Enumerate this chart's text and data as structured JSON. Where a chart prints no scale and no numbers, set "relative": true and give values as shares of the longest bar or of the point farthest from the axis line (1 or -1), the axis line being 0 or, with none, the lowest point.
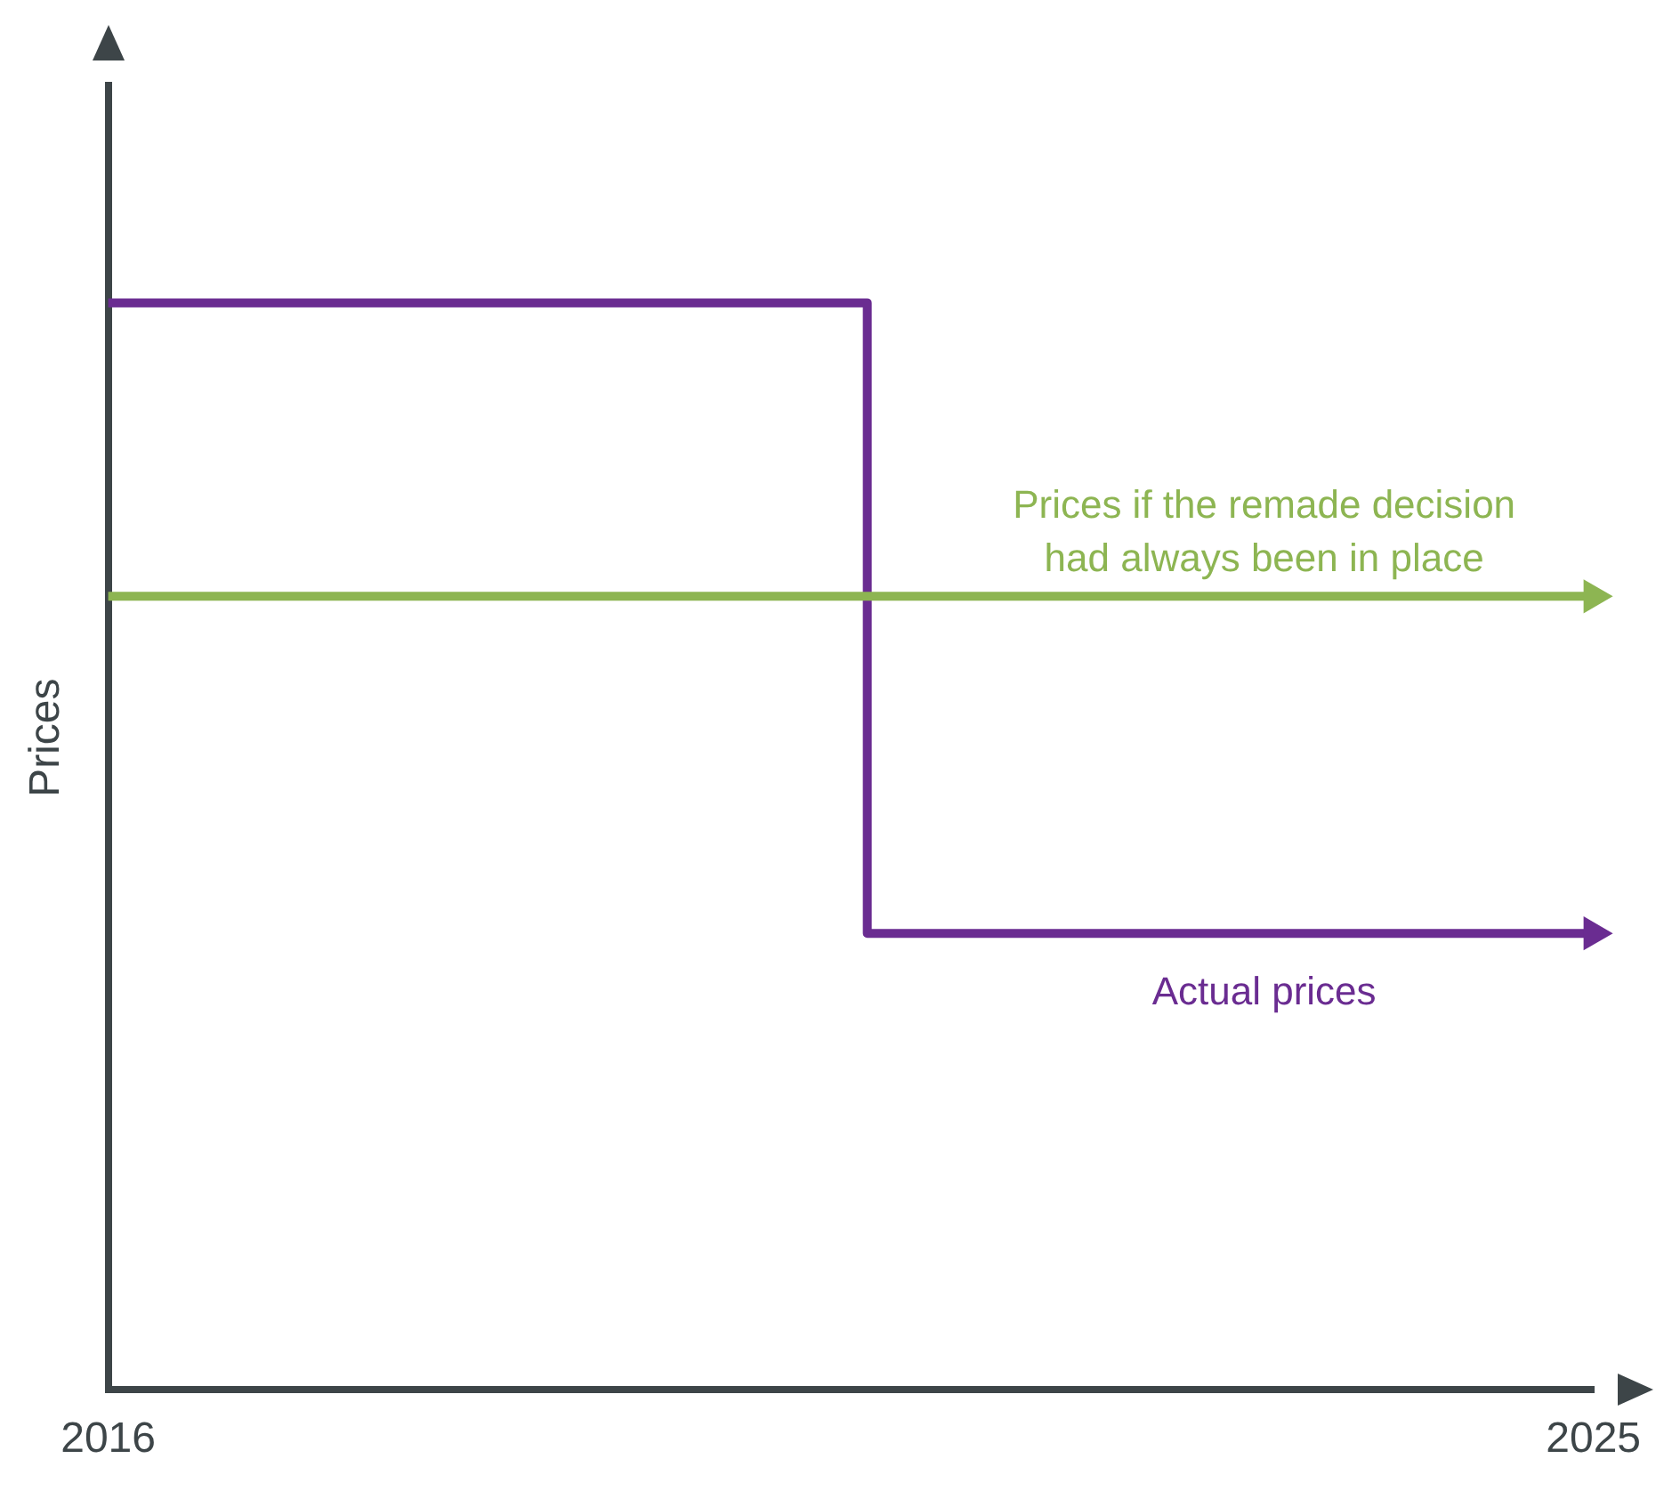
{
  "chart_data": {
    "type": "step",
    "ylabel": "Prices",
    "relative": true,
    "xlim": [
      2016,
      2025
    ],
    "xticks": [
      2016,
      2025
    ],
    "grid": false,
    "legend": false,
    "line_style": "solid",
    "series": [
      {
        "name": "Prices if the remade decision had always been in place",
        "color": "#8db552",
        "x": [
          2016,
          2025
        ],
        "values": [
          0.73,
          0.73
        ]
      },
      {
        "name": "Actual prices",
        "color": "#6a2c91",
        "x": [
          2016,
          2020.6,
          2025
        ],
        "values": [
          1,
          0.42,
          0.42
        ]
      }
    ]
  }
}
